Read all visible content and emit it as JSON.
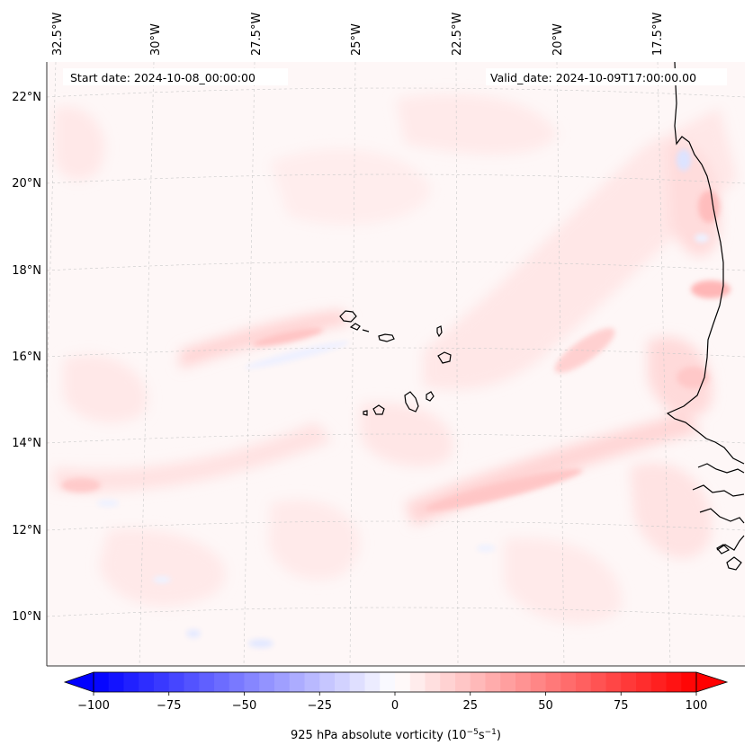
{
  "header": {
    "start_date": "Start date: 2024-10-08_00:00:00",
    "valid_date": "Valid_date: 2024-10-09T17:00:00.00"
  },
  "map": {
    "projection": "lambert-conformal",
    "region": "Cape Verde Islands and West African coast",
    "lon_labels": [
      "32.5°W",
      "30°W",
      "27.5°W",
      "25°W",
      "22.5°W",
      "20°W",
      "17.5°W"
    ],
    "lat_labels": [
      "22°N",
      "20°N",
      "18°N",
      "16°N",
      "14°N",
      "12°N",
      "10°N"
    ],
    "field": "925 hPa absolute vorticity",
    "colormap": "bwr"
  },
  "colorbar": {
    "label": "925 hPa absolute vorticity (10",
    "label_sup1": "−5",
    "label_mid": "s",
    "label_sup2": "−1",
    "label_end": ")",
    "ticks": [
      "−100",
      "−75",
      "−50",
      "−25",
      "0",
      "25",
      "50",
      "75",
      "100"
    ],
    "min": -100,
    "max": 100,
    "levels": 40,
    "extend": "both"
  },
  "colors": {
    "low": "#0000ff",
    "mid": "#ffffff",
    "high": "#ff0000",
    "coastline": "#000000",
    "gridline": "#c8c8c8"
  }
}
